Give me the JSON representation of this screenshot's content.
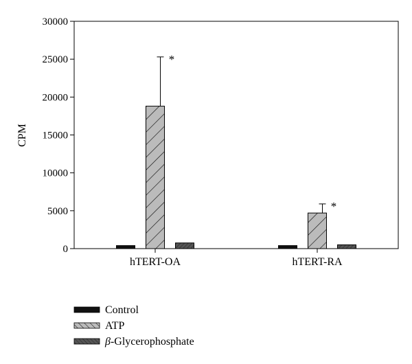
{
  "chart_data": {
    "type": "bar",
    "ylabel": "CPM",
    "xlabel": "",
    "ylim": [
      0,
      30000
    ],
    "yticks": [
      "0",
      "5000",
      "10000",
      "15000",
      "20000",
      "25000",
      "30000"
    ],
    "categories": [
      "hTERT-OA",
      "hTERT-RA"
    ],
    "series": [
      {
        "name": "Control",
        "values": [
          400,
          400
        ],
        "errors": [
          null,
          null
        ],
        "color": "#111111",
        "pattern": "solid"
      },
      {
        "name": "ATP",
        "values": [
          18800,
          4700
        ],
        "errors": [
          6500,
          1200
        ],
        "color": "#bbbbbb",
        "pattern": "hatch"
      },
      {
        "name": "β-Glycerophosphate",
        "values": [
          750,
          500
        ],
        "errors": [
          null,
          null
        ],
        "color": "#555555",
        "pattern": "dense-hatch"
      }
    ],
    "annotations": [
      {
        "category": "hTERT-OA",
        "series": "ATP",
        "text": "*"
      },
      {
        "category": "hTERT-RA",
        "series": "ATP",
        "text": "*"
      }
    ],
    "legend": {
      "placement": "bottom-left",
      "items": [
        {
          "prefix": "",
          "text": "Control"
        },
        {
          "prefix": "",
          "text": "ATP"
        },
        {
          "prefix": "β",
          "text": "-Glycerophosphate"
        }
      ]
    },
    "grid": false
  }
}
